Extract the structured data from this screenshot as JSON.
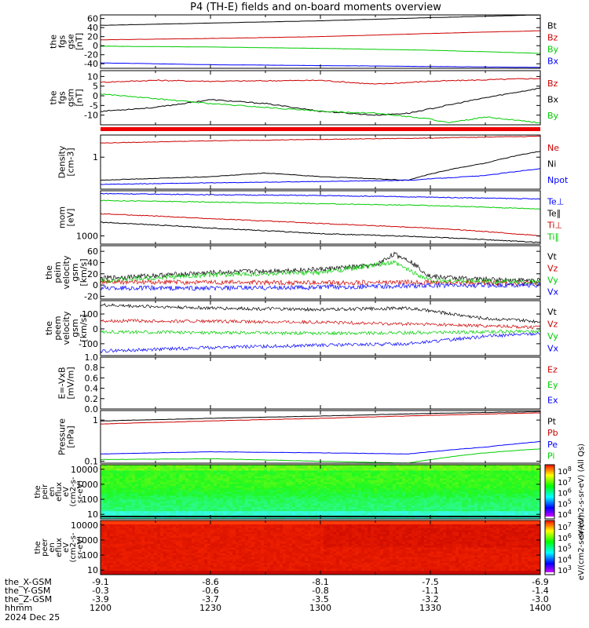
{
  "title": "P4 (TH-E) fields and on-board moments overview",
  "colors": {
    "black": "#000000",
    "red": "#cc0000",
    "green": "#00cc00",
    "blue": "#0000ff"
  },
  "chart_data": [
    {
      "type": "line",
      "ylabel": [
        "the",
        "fgs",
        "gse",
        "[nT]"
      ],
      "ylim": [
        -50,
        68
      ],
      "yticks": [
        60,
        40,
        20,
        0,
        -20,
        -40
      ],
      "series": [
        {
          "name": "Bt",
          "color": "black",
          "x": [
            1200,
            1230,
            1300,
            1330,
            1400
          ],
          "values": [
            45,
            50,
            55,
            62,
            68
          ]
        },
        {
          "name": "Bz",
          "color": "red",
          "x": [
            1200,
            1230,
            1300,
            1330,
            1400
          ],
          "values": [
            13,
            16,
            20,
            27,
            33
          ]
        },
        {
          "name": "By",
          "color": "green",
          "x": [
            1200,
            1230,
            1300,
            1330,
            1400
          ],
          "values": [
            -1,
            -3,
            -6,
            -10,
            -17
          ]
        },
        {
          "name": "Bx",
          "color": "blue",
          "x": [
            1200,
            1230,
            1300,
            1330,
            1400
          ],
          "values": [
            -38,
            -42,
            -44,
            -46,
            -48
          ]
        }
      ]
    },
    {
      "type": "line",
      "ylabel": [
        "the",
        "fgs",
        "gsm",
        "[nT]"
      ],
      "ylim": [
        -15,
        13
      ],
      "yticks": [
        10,
        5,
        0,
        -5,
        -10
      ],
      "series": [
        {
          "name": "Bz",
          "color": "red",
          "x": [
            1200,
            1215,
            1230,
            1300,
            1315,
            1330,
            1400
          ],
          "values": [
            7,
            8,
            7.5,
            8,
            6,
            7.5,
            9
          ]
        },
        {
          "name": "Bx",
          "color": "black",
          "x": [
            1200,
            1215,
            1230,
            1245,
            1300,
            1315,
            1324,
            1345,
            1400
          ],
          "values": [
            -8,
            -6,
            -2,
            -4,
            -8,
            -10,
            -9,
            -1,
            4
          ]
        },
        {
          "name": "By",
          "color": "green",
          "x": [
            1200,
            1230,
            1300,
            1315,
            1330,
            1335,
            1345,
            1400
          ],
          "values": [
            1,
            -4,
            -8,
            -9,
            -12,
            -14,
            -11,
            -14
          ]
        }
      ]
    },
    {
      "type": "line",
      "ylabel": [
        "Density",
        "[cm-3]"
      ],
      "ylim": [
        0.3,
        2.3
      ],
      "ylog": true,
      "yticks": [
        1
      ],
      "series": [
        {
          "name": "Ne",
          "color": "red",
          "x": [
            1200,
            1230,
            1300,
            1330,
            1400
          ],
          "values": [
            1.7,
            1.85,
            1.95,
            2.05,
            2.2
          ]
        },
        {
          "name": "Ni",
          "color": "black",
          "x": [
            1200,
            1230,
            1245,
            1300,
            1324,
            1345,
            1400
          ],
          "values": [
            0.42,
            0.48,
            0.55,
            0.48,
            0.42,
            0.8,
            1.25
          ]
        },
        {
          "name": "Npot",
          "color": "blue",
          "x": [
            1200,
            1230,
            1300,
            1324,
            1345,
            1400
          ],
          "values": [
            0.36,
            0.38,
            0.4,
            0.42,
            0.5,
            0.65
          ]
        }
      ]
    },
    {
      "type": "line",
      "ylabel": [
        "mom",
        "[eV]"
      ],
      "ylim": [
        700,
        7000
      ],
      "ylog": true,
      "yticks": [
        1000
      ],
      "series": [
        {
          "name": "Te⊥",
          "color": "blue",
          "x": [
            1200,
            1230,
            1300,
            1330,
            1400
          ],
          "values": [
            6200,
            5900,
            5700,
            5300,
            4900
          ]
        },
        {
          "name": "Te∥",
          "color": "black",
          "x": [
            1200,
            1230,
            1300,
            1330,
            1400
          ],
          "values": [
            1800,
            1400,
            1100,
            950,
            750
          ]
        },
        {
          "name": "Ti⊥",
          "color": "red",
          "x": [
            1200,
            1230,
            1300,
            1330,
            1400
          ],
          "values": [
            2600,
            2100,
            1700,
            1400,
            1000
          ]
        },
        {
          "name": "Ti∥",
          "color": "green",
          "x": [
            1200,
            1230,
            1300,
            1330,
            1400
          ],
          "values": [
            4600,
            4300,
            4000,
            3700,
            3200
          ]
        }
      ]
    },
    {
      "type": "line",
      "ylabel": [
        "the",
        "peim",
        "velocity",
        "gsm",
        "[km/s]"
      ],
      "ylim": [
        -25,
        70
      ],
      "yticks": [
        60,
        40,
        20,
        0,
        -20
      ],
      "series": [
        {
          "name": "Vt",
          "color": "black",
          "x": [
            1200,
            1230,
            1300,
            1315,
            1320,
            1324,
            1330,
            1345,
            1400
          ],
          "values": [
            12,
            22,
            28,
            35,
            55,
            45,
            15,
            10,
            8
          ]
        },
        {
          "name": "Vz",
          "color": "red",
          "x": [
            1200,
            1230,
            1300,
            1330,
            1400
          ],
          "values": [
            5,
            5,
            4,
            5,
            3
          ]
        },
        {
          "name": "Vy",
          "color": "green",
          "x": [
            1200,
            1230,
            1300,
            1320,
            1330,
            1400
          ],
          "values": [
            8,
            18,
            22,
            40,
            8,
            5
          ]
        },
        {
          "name": "Vx",
          "color": "blue",
          "x": [
            1200,
            1230,
            1300,
            1330,
            1400
          ],
          "values": [
            -5,
            -6,
            -4,
            -1,
            0
          ]
        }
      ]
    },
    {
      "type": "line",
      "ylabel": [
        "the",
        "peem",
        "velocity",
        "gsm",
        "[km/s]"
      ],
      "ylim": [
        -180,
        190
      ],
      "yticks": [
        100,
        0,
        -100
      ],
      "series": [
        {
          "name": "Vt",
          "color": "black",
          "x": [
            1200,
            1230,
            1300,
            1324,
            1345,
            1400
          ],
          "values": [
            160,
            140,
            130,
            140,
            70,
            50
          ]
        },
        {
          "name": "Vz",
          "color": "red",
          "x": [
            1200,
            1230,
            1300,
            1330,
            1400
          ],
          "values": [
            55,
            50,
            45,
            30,
            10
          ]
        },
        {
          "name": "Vy",
          "color": "green",
          "x": [
            1200,
            1230,
            1300,
            1330,
            1400
          ],
          "values": [
            -20,
            -25,
            -30,
            -25,
            -15
          ]
        },
        {
          "name": "Vx",
          "color": "blue",
          "x": [
            1200,
            1230,
            1300,
            1324,
            1345,
            1400
          ],
          "values": [
            -150,
            -125,
            -110,
            -100,
            -50,
            -30
          ]
        }
      ]
    },
    {
      "type": "line",
      "ylabel": [
        "E=-VxB",
        "[mV/m]"
      ],
      "ylim": [
        0,
        1
      ],
      "yticks": [
        1.0,
        0.8,
        0.6,
        0.4,
        0.2,
        0.0
      ],
      "series": [
        {
          "name": "Ez",
          "color": "red",
          "x": [],
          "values": []
        },
        {
          "name": "Ey",
          "color": "green",
          "x": [],
          "values": []
        },
        {
          "name": "Ex",
          "color": "blue",
          "x": [],
          "values": []
        }
      ]
    },
    {
      "type": "line",
      "ylabel": [
        "Pressure",
        "[nPa]"
      ],
      "ylim": [
        0.09,
        1.7
      ],
      "ylog": true,
      "yticks": [
        1.0,
        0.1
      ],
      "series": [
        {
          "name": "Pt",
          "color": "black",
          "x": [
            1200,
            1230,
            1300,
            1330,
            1400
          ],
          "values": [
            0.95,
            1.1,
            1.25,
            1.45,
            1.6
          ]
        },
        {
          "name": "Pb",
          "color": "red",
          "x": [
            1200,
            1230,
            1300,
            1330,
            1400
          ],
          "values": [
            0.8,
            0.95,
            1.1,
            1.3,
            1.5
          ]
        },
        {
          "name": "Pe",
          "color": "blue",
          "x": [
            1200,
            1230,
            1300,
            1324,
            1345,
            1400
          ],
          "values": [
            0.15,
            0.17,
            0.16,
            0.15,
            0.22,
            0.3
          ]
        },
        {
          "name": "Pi",
          "color": "green",
          "x": [
            1200,
            1230,
            1300,
            1324,
            1345,
            1400
          ],
          "values": [
            0.11,
            0.115,
            0.1,
            0.09,
            0.16,
            0.2
          ]
        }
      ]
    },
    {
      "type": "heatmap",
      "ylabel": [
        "the",
        "peir",
        "en",
        "eflux",
        "eV",
        "(cm2-s-",
        "sr-eV)"
      ],
      "ylim": [
        5,
        20000
      ],
      "ylog": true,
      "yticks": [
        10000,
        1000,
        100,
        10
      ],
      "colorbar": {
        "label": "eV/(cm2-s-sr-eV) (All Qs)",
        "ticks": [
          "10^8",
          "10^7",
          "10^6",
          "10^5",
          "10^4"
        ]
      }
    },
    {
      "type": "heatmap",
      "ylabel": [
        "the",
        "peer",
        "en",
        "eflux",
        "eV",
        "(cm2-s-",
        "sr-eV)"
      ],
      "ylim": [
        5,
        20000
      ],
      "ylog": true,
      "yticks": [
        10000,
        1000,
        100,
        10
      ],
      "colorbar": {
        "label": "eV/(cm2-s-sr-eV)",
        "ticks": [
          "10^7",
          "10^6",
          "10^5",
          "10^4",
          "10^3"
        ]
      }
    }
  ],
  "xaxis": {
    "rows": [
      {
        "label": "the_X-GSM",
        "values": [
          "-9.1",
          "-8.6",
          "-8.1",
          "-7.5",
          "-6.9"
        ]
      },
      {
        "label": "the_Y-GSM",
        "values": [
          "-0.3",
          "-0.6",
          "-0.8",
          "-1.1",
          "-1.4"
        ]
      },
      {
        "label": "the_Z-GSM",
        "values": [
          "-3.9",
          "-3.7",
          "-3.5",
          "-3.2",
          "-3.0"
        ]
      },
      {
        "label": "hhmm",
        "values": [
          "1200",
          "1230",
          "1300",
          "1330",
          "1400"
        ]
      }
    ],
    "date": "2024 Dec 25"
  }
}
